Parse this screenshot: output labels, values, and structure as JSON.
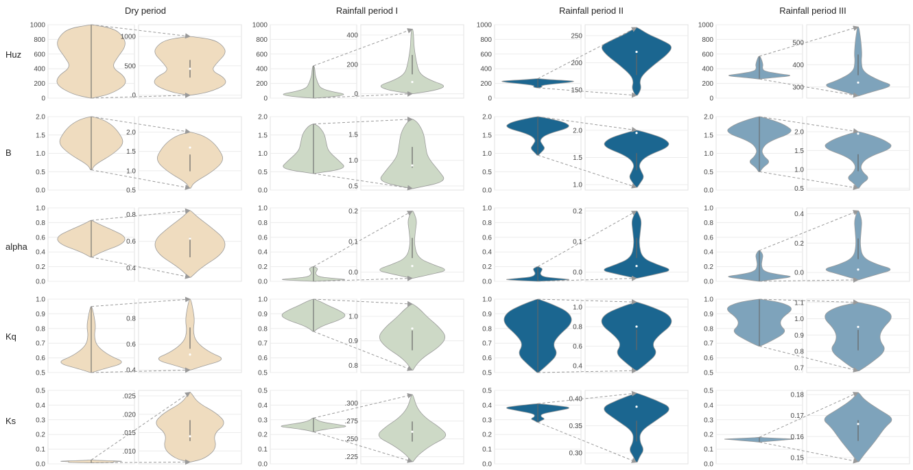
{
  "columns": [
    "Dry period",
    "Rainfall period I",
    "Rainfall period II",
    "Rainfall period III"
  ],
  "rows": [
    "Huz",
    "B",
    "alpha",
    "Kq",
    "Ks"
  ],
  "colors": {
    "Dry period": "#efdcbf",
    "Rainfall period I": "#cdd9c6",
    "Rainfall period II": "#1b6690",
    "Rainfall period III": "#7ea3bb"
  },
  "chart_data": {
    "type": "violin",
    "description": "Grid of violin plots (5 parameters x 4 periods); each cell has a full-range violin on the left and a zoomed violin on the right connected by dashed arrows.",
    "panels": {
      "Huz": {
        "main_ylim": [
          0,
          1000
        ],
        "main_ticks": [
          "0",
          "200",
          "400",
          "600",
          "800",
          "1000"
        ],
        "zoom": [
          {
            "period": "Dry period",
            "ylim": [
              -50,
              1200
            ],
            "ticks": [
              {
                "v": 0,
                "t": "0"
              },
              {
                "v": 500,
                "t": "500"
              },
              {
                "v": 1000,
                "t": "1000"
              }
            ],
            "range": [
              0,
              1000
            ],
            "median": 450
          },
          {
            "period": "Rainfall period I",
            "ylim": [
              -30,
              470
            ],
            "ticks": [
              {
                "v": 0,
                "t": "0"
              },
              {
                "v": 200,
                "t": "200"
              },
              {
                "v": 400,
                "t": "400"
              }
            ],
            "range": [
              0,
              440
            ],
            "median": 80
          },
          {
            "period": "Rainfall period II",
            "ylim": [
              135,
              270
            ],
            "ticks": [
              {
                "v": 150,
                "t": "150"
              },
              {
                "v": 200,
                "t": "200"
              },
              {
                "v": 250,
                "t": "250"
              }
            ],
            "range": [
              140,
              265
            ],
            "median": 220
          },
          {
            "period": "Rainfall period III",
            "ylim": [
              250,
              580
            ],
            "ticks": [
              {
                "v": 300,
                "t": "300"
              },
              {
                "v": 400,
                "t": "400"
              },
              {
                "v": 500,
                "t": "500"
              }
            ],
            "range": [
              260,
              570
            ],
            "median": 320
          }
        ]
      },
      "B": {
        "main_ylim": [
          0,
          2
        ],
        "main_ticks": [
          "0.0",
          "0.5",
          "1.0",
          "1.5",
          "2.0"
        ],
        "zoom": [
          {
            "period": "Dry period",
            "ylim": [
              0.5,
              2.4
            ],
            "ticks": [
              {
                "v": 0.5,
                "t": "0.5"
              },
              {
                "v": 1.0,
                "t": "1.0"
              },
              {
                "v": 1.5,
                "t": "1.5"
              },
              {
                "v": 2.0,
                "t": "2.0"
              }
            ],
            "range": [
              0.55,
              2.0
            ],
            "median": 1.6
          },
          {
            "period": "Rainfall period I",
            "ylim": [
              0.42,
              1.85
            ],
            "ticks": [
              {
                "v": 0.5,
                "t": "0.5"
              },
              {
                "v": 1.0,
                "t": "1.0"
              },
              {
                "v": 1.5,
                "t": "1.5"
              }
            ],
            "range": [
              0.45,
              1.8
            ],
            "median": 0.9
          },
          {
            "period": "Rainfall period II",
            "ylim": [
              0.9,
              2.25
            ],
            "ticks": [
              {
                "v": 1.0,
                "t": "1.0"
              },
              {
                "v": 1.5,
                "t": "1.5"
              },
              {
                "v": 2.0,
                "t": "2.0"
              }
            ],
            "range": [
              0.95,
              2.0
            ],
            "median": 1.95
          },
          {
            "period": "Rainfall period III",
            "ylim": [
              0.45,
              2.4
            ],
            "ticks": [
              {
                "v": 0.5,
                "t": "0.5"
              },
              {
                "v": 1.0,
                "t": "1.0"
              },
              {
                "v": 1.5,
                "t": "1.5"
              },
              {
                "v": 2.0,
                "t": "2.0"
              }
            ],
            "range": [
              0.5,
              2.0
            ],
            "median": 1.95
          }
        ]
      },
      "alpha": {
        "main_ylim": [
          0,
          1
        ],
        "main_ticks": [
          "0.0",
          "0.2",
          "0.4",
          "0.6",
          "0.8",
          "1.0"
        ],
        "zoom": [
          {
            "period": "Dry period",
            "ylim": [
              0.3,
              0.85
            ],
            "ticks": [
              {
                "v": 0.4,
                "t": "0.4"
              },
              {
                "v": 0.6,
                "t": "0.6"
              },
              {
                "v": 0.8,
                "t": "0.8"
              }
            ],
            "range": [
              0.33,
              0.83
            ],
            "median": 0.62
          },
          {
            "period": "Rainfall period I",
            "ylim": [
              -0.03,
              0.21
            ],
            "ticks": [
              {
                "v": 0.0,
                "t": "0.0"
              },
              {
                "v": 0.1,
                "t": "0.1"
              },
              {
                "v": 0.2,
                "t": "0.2"
              }
            ],
            "range": [
              -0.02,
              0.2
            ],
            "median": 0.02
          },
          {
            "period": "Rainfall period II",
            "ylim": [
              -0.03,
              0.21
            ],
            "ticks": [
              {
                "v": 0.0,
                "t": "0.0"
              },
              {
                "v": 0.1,
                "t": "0.1"
              },
              {
                "v": 0.2,
                "t": "0.2"
              }
            ],
            "range": [
              -0.02,
              0.2
            ],
            "median": 0.02
          },
          {
            "period": "Rainfall period III",
            "ylim": [
              -0.06,
              0.44
            ],
            "ticks": [
              {
                "v": 0.0,
                "t": "0.0"
              },
              {
                "v": 0.2,
                "t": "0.2"
              },
              {
                "v": 0.4,
                "t": "0.4"
              }
            ],
            "range": [
              -0.05,
              0.42
            ],
            "median": 0.02
          }
        ]
      },
      "Kq": {
        "main_ylim": [
          0.5,
          1.0
        ],
        "main_ticks": [
          "0.5",
          "0.6",
          "0.7",
          "0.8",
          "0.9",
          "1.0"
        ],
        "zoom": [
          {
            "period": "Dry period",
            "ylim": [
              0.38,
              0.95
            ],
            "ticks": [
              {
                "v": 0.4,
                "t": "0.4"
              },
              {
                "v": 0.6,
                "t": "0.6"
              },
              {
                "v": 0.8,
                "t": "0.8"
              }
            ],
            "range": [
              0.4,
              0.95
            ],
            "median": 0.52
          },
          {
            "period": "Rainfall period I",
            "ylim": [
              0.77,
              1.07
            ],
            "ticks": [
              {
                "v": 0.8,
                "t": "0.8"
              },
              {
                "v": 0.9,
                "t": "0.9"
              },
              {
                "v": 1.0,
                "t": "1.0"
              }
            ],
            "range": [
              0.78,
              1.05
            ],
            "median": 0.95
          },
          {
            "period": "Rainfall period II",
            "ylim": [
              0.33,
              1.08
            ],
            "ticks": [
              {
                "v": 0.4,
                "t": "0.4"
              },
              {
                "v": 0.6,
                "t": "0.6"
              },
              {
                "v": 0.8,
                "t": "0.8"
              },
              {
                "v": 1.0,
                "t": "1.0"
              }
            ],
            "range": [
              0.35,
              1.05
            ],
            "median": 0.8
          },
          {
            "period": "Rainfall period III",
            "ylim": [
              0.67,
              1.12
            ],
            "ticks": [
              {
                "v": 0.7,
                "t": "0.7"
              },
              {
                "v": 0.8,
                "t": "0.8"
              },
              {
                "v": 0.9,
                "t": "0.9"
              },
              {
                "v": 1.0,
                "t": "1.0"
              },
              {
                "v": 1.1,
                "t": "1.1"
              }
            ],
            "range": [
              0.68,
              1.1
            ],
            "median": 0.95
          }
        ]
      },
      "Ks": {
        "main_ylim": [
          0,
          0.5
        ],
        "main_ticks": [
          "0.0",
          "0.1",
          "0.2",
          "0.3",
          "0.4",
          "0.5"
        ],
        "zoom": [
          {
            "period": "Dry period",
            "ylim": [
              0.0065,
              0.0265
            ],
            "ticks": [
              {
                "v": 0.01,
                "t": ".010"
              },
              {
                "v": 0.015,
                "t": ".015"
              },
              {
                "v": 0.02,
                "t": ".020"
              },
              {
                "v": 0.025,
                "t": ".025"
              }
            ],
            "range": [
              0.007,
              0.026
            ],
            "median": 0.014
          },
          {
            "period": "Rainfall period I",
            "ylim": [
              0.215,
              0.318
            ],
            "ticks": [
              {
                "v": 0.225,
                "t": ".225"
              },
              {
                "v": 0.25,
                "t": ".250"
              },
              {
                "v": 0.275,
                "t": ".275"
              },
              {
                "v": 0.3,
                "t": ".300"
              }
            ],
            "range": [
              0.218,
              0.312
            ],
            "median": 0.26
          },
          {
            "period": "Rainfall period II",
            "ylim": [
              0.28,
              0.415
            ],
            "ticks": [
              {
                "v": 0.3,
                "t": "0.30"
              },
              {
                "v": 0.35,
                "t": "0.35"
              },
              {
                "v": 0.4,
                "t": "0.40"
              }
            ],
            "range": [
              0.283,
              0.41
            ],
            "median": 0.385
          },
          {
            "period": "Rainfall period III",
            "ylim": [
              0.147,
              0.182
            ],
            "ticks": [
              {
                "v": 0.15,
                "t": "0.15"
              },
              {
                "v": 0.16,
                "t": "0.16"
              },
              {
                "v": 0.17,
                "t": "0.17"
              },
              {
                "v": 0.18,
                "t": "0.18"
              }
            ],
            "range": [
              0.148,
              0.181
            ],
            "median": 0.166
          }
        ]
      }
    }
  }
}
